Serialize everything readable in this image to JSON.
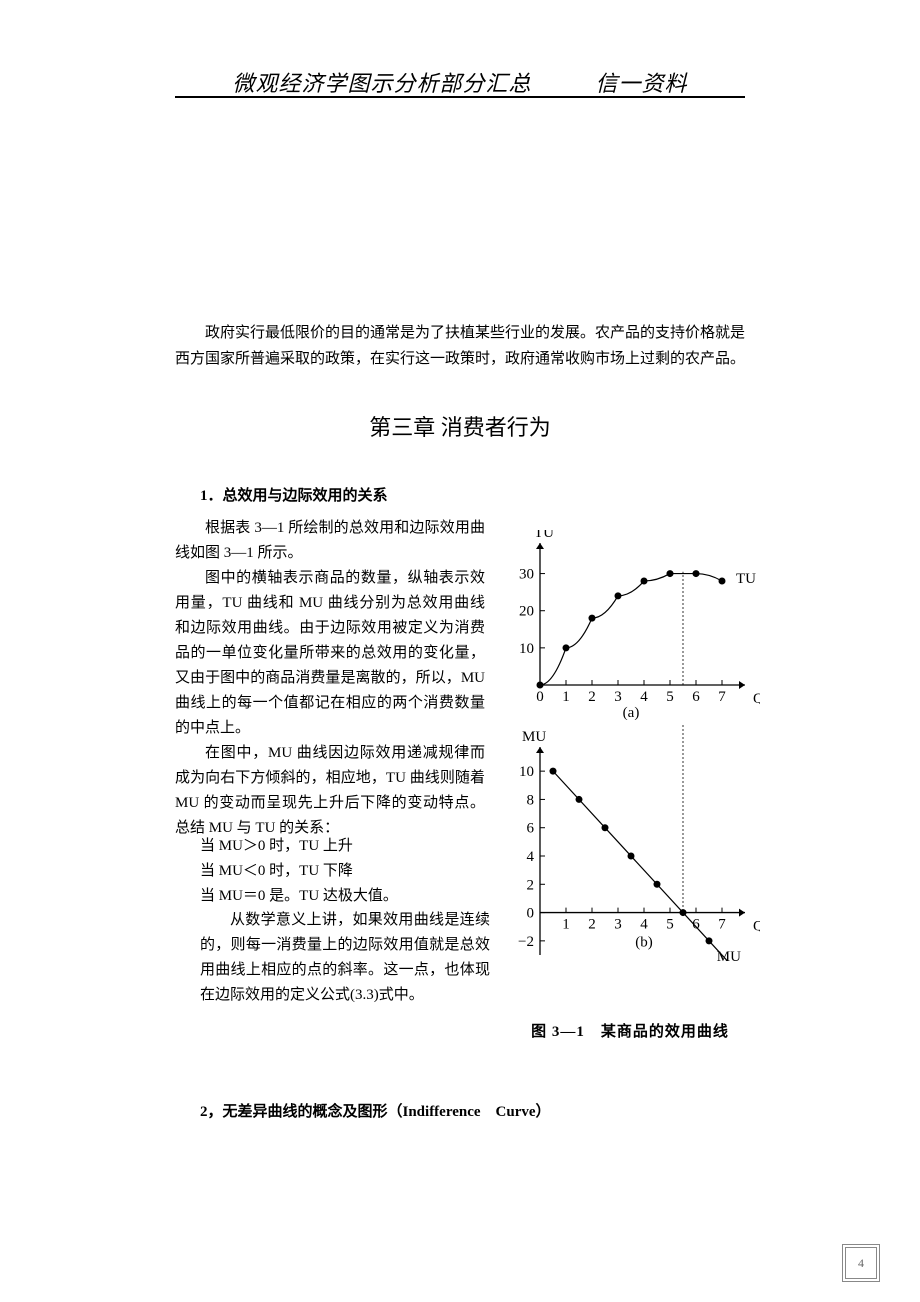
{
  "header": {
    "left": "微观经济学图示分析部分汇总",
    "right": "信一资料"
  },
  "intro_paragraph": "　　政府实行最低限价的目的通常是为了扶植某些行业的发展。农产品的支持价格就是西方国家所普遍采取的政策，在实行这一政策时，政府通常收购市场上过剩的农产品。",
  "chapter_title": "第三章  消费者行为",
  "section1": {
    "title": "1．总效用与边际效用的关系",
    "p1": "根据表 3—1 所绘制的总效用和边际效用曲线如图 3—1 所示。",
    "p2": "图中的横轴表示商品的数量，纵轴表示效用量，TU 曲线和 MU 曲线分别为总效用曲线和边际效用曲线。由于边际效用被定义为消费品的一单位变化量所带来的总效用的变化量，又由于图中的商品消费量是离散的，所以，MU 曲线上的每一个值都记在相应的两个消费数量的中点上。",
    "p3": "在图中，MU 曲线因边际效用递减规律而成为向右下方倾斜的，相应地，TU 曲线则随着 MU 的变动而呈现先上升后下降的变动特点。总结 MU 与 TU 的关系：",
    "rel1": "当 MU＞0 时，TU 上升",
    "rel2": "当 MU＜0 时，TU 下降",
    "rel3": "当 MU＝0 是。TU 达极大值。",
    "p4": "从数学意义上讲，如果效用曲线是连续的，则每一消费量上的边际效用值就是总效用曲线上相应的点的斜率。这一点，也体现在边际效用的定义公式(3.3)式中。"
  },
  "figure": {
    "caption": "图 3—1　某商品的效用曲线",
    "chart_a": {
      "type": "line",
      "y_label": "TU",
      "x_label": "Q",
      "panel_label": "(a)",
      "curve_label": "TU",
      "x_ticks": [
        0,
        1,
        2,
        3,
        4,
        5,
        6,
        7
      ],
      "y_ticks": [
        0,
        10,
        20,
        30
      ],
      "ylim": [
        0,
        35
      ],
      "xlim": [
        0,
        7.5
      ],
      "tu_points": [
        {
          "x": 0,
          "y": 0
        },
        {
          "x": 1,
          "y": 10
        },
        {
          "x": 2,
          "y": 18
        },
        {
          "x": 3,
          "y": 24
        },
        {
          "x": 4,
          "y": 28
        },
        {
          "x": 5,
          "y": 30
        },
        {
          "x": 6,
          "y": 30
        },
        {
          "x": 7,
          "y": 28
        }
      ],
      "dashed_x": 5.5,
      "axis_color": "#000000",
      "line_color": "#000000",
      "marker_fill": "#000000",
      "marker_size": 3.5,
      "line_width": 1.2,
      "font_size": 15
    },
    "chart_b": {
      "type": "line",
      "y_label": "MU",
      "x_label": "Q",
      "panel_label": "(b)",
      "curve_label": "MU",
      "x_ticks": [
        1,
        2,
        3,
        4,
        5,
        6,
        7
      ],
      "y_ticks": [
        -2,
        0,
        2,
        4,
        6,
        8,
        10
      ],
      "ylim": [
        -3,
        11
      ],
      "xlim": [
        0,
        7.5
      ],
      "mu_points": [
        {
          "x": 0.5,
          "y": 10
        },
        {
          "x": 1.5,
          "y": 8
        },
        {
          "x": 2.5,
          "y": 6
        },
        {
          "x": 3.5,
          "y": 4
        },
        {
          "x": 4.5,
          "y": 2
        },
        {
          "x": 5.5,
          "y": 0
        },
        {
          "x": 6.5,
          "y": -2
        }
      ],
      "line_extend": {
        "x1": 0.5,
        "y1": 10,
        "x2": 7.2,
        "y2": -3.4
      },
      "dashed_x": 5.5,
      "axis_color": "#000000",
      "line_color": "#000000",
      "marker_fill": "#000000",
      "marker_size": 3.5,
      "line_width": 1.2,
      "font_size": 15
    }
  },
  "section2": {
    "title": "2，无差异曲线的概念及图形（Indifference　Curve）"
  },
  "page_number": "4",
  "colors": {
    "text": "#000000",
    "background": "#ffffff",
    "pagebox_border": "#888888",
    "pagebox_text": "#666666"
  }
}
